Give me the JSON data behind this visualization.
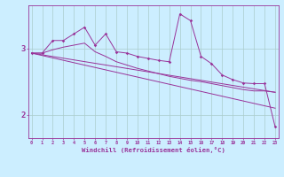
{
  "title": "",
  "xlabel": "Windchill (Refroidissement éolien,°C)",
  "bg_color": "#cceeff",
  "grid_color": "#aacccc",
  "line_color": "#993399",
  "x_ticks": [
    0,
    1,
    2,
    3,
    4,
    5,
    6,
    7,
    8,
    9,
    10,
    11,
    12,
    13,
    14,
    15,
    16,
    17,
    18,
    19,
    20,
    21,
    22,
    23
  ],
  "ylim": [
    1.65,
    3.65
  ],
  "yticks": [
    2,
    3
  ],
  "series1": [
    2.93,
    2.93,
    3.12,
    3.12,
    3.22,
    3.32,
    3.05,
    3.22,
    2.95,
    2.93,
    2.88,
    2.85,
    2.82,
    2.8,
    3.52,
    3.42,
    2.88,
    2.77,
    2.6,
    2.53,
    2.48,
    2.47,
    2.47,
    1.82
  ],
  "series2": [
    2.93,
    2.93,
    2.98,
    3.02,
    3.05,
    3.08,
    2.95,
    2.88,
    2.8,
    2.75,
    2.7,
    2.66,
    2.62,
    2.58,
    2.55,
    2.52,
    2.5,
    2.47,
    2.44,
    2.41,
    2.38,
    2.36,
    2.36,
    2.34
  ],
  "trend1_y": [
    2.93,
    2.34
  ],
  "trend2_y": [
    2.93,
    2.1
  ],
  "figsize": [
    3.2,
    2.0
  ],
  "dpi": 100
}
